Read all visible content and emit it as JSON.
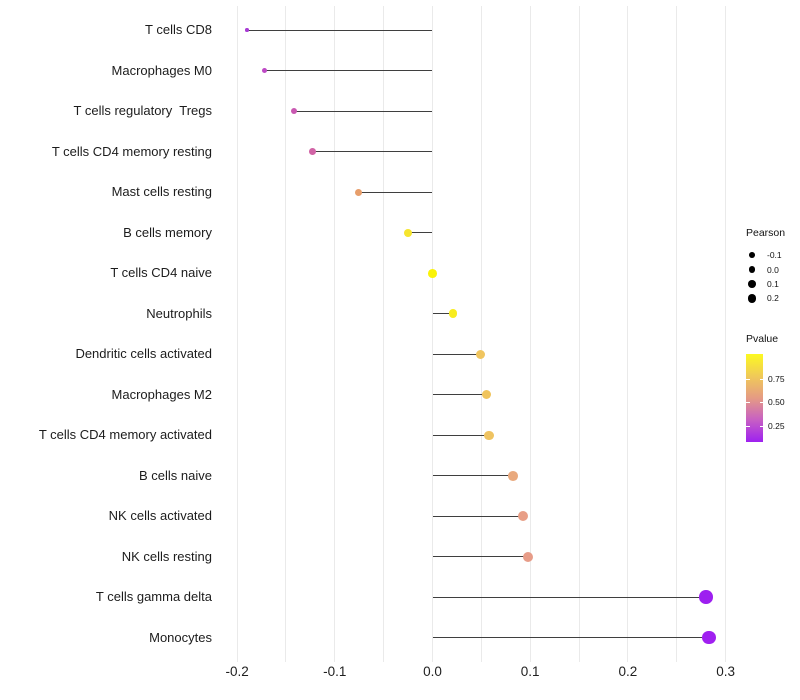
{
  "chart_data": {
    "type": "scatter",
    "subtype": "lollipop",
    "title": "",
    "xlabel": "",
    "ylabel": "",
    "xlim": [
      -0.225,
      0.33
    ],
    "x_tick_labels": [
      "-0.2",
      "-0.1",
      "0.0",
      "0.1",
      "0.2",
      "0.3"
    ],
    "x_tick_values": [
      -0.2,
      -0.1,
      0.0,
      0.1,
      0.2,
      0.3
    ],
    "gridline_values": [
      -0.2,
      -0.15,
      -0.1,
      -0.05,
      0.0,
      0.05,
      0.1,
      0.15,
      0.2,
      0.25,
      0.3
    ],
    "grid": "vertical only, light gray, every 0.05",
    "legend_position": "right",
    "points": [
      {
        "label": "T cells CD8",
        "pearson": -0.19,
        "color": "#A83BD4",
        "diameter": 3.6
      },
      {
        "label": "Macrophages M0",
        "pearson": -0.172,
        "color": "#BE49C5",
        "diameter": 5.2
      },
      {
        "label": "T cells regulatory  Tregs",
        "pearson": -0.142,
        "color": "#C958B1",
        "diameter": 6.4
      },
      {
        "label": "T cells CD4 memory resting",
        "pearson": -0.123,
        "color": "#D164A6",
        "diameter": 6.8
      },
      {
        "label": "Mast cells resting",
        "pearson": -0.076,
        "color": "#E79E6B",
        "diameter": 7.4
      },
      {
        "label": "B cells memory",
        "pearson": -0.025,
        "color": "#F6E52E",
        "diameter": 8.2
      },
      {
        "label": "T cells CD4 naive",
        "pearson": 0.0,
        "color": "#FAF307",
        "diameter": 8.8
      },
      {
        "label": "Neutrophils",
        "pearson": 0.021,
        "color": "#F8EC1E",
        "diameter": 8.8
      },
      {
        "label": "Dendritic cells activated",
        "pearson": 0.049,
        "color": "#F0C55F",
        "diameter": 9.2
      },
      {
        "label": "Macrophages M2",
        "pearson": 0.055,
        "color": "#F0C45C",
        "diameter": 9.4
      },
      {
        "label": "T cells CD4 memory activated",
        "pearson": 0.058,
        "color": "#EFC361",
        "diameter": 9.4
      },
      {
        "label": "B cells naive",
        "pearson": 0.082,
        "color": "#E9A97D",
        "diameter": 9.8
      },
      {
        "label": "NK cells activated",
        "pearson": 0.093,
        "color": "#E89E86",
        "diameter": 10.2
      },
      {
        "label": "NK cells resting",
        "pearson": 0.098,
        "color": "#E79C88",
        "diameter": 10.2
      },
      {
        "label": "T cells gamma delta",
        "pearson": 0.28,
        "color": "#9D1FF0",
        "diameter": 13.6
      },
      {
        "label": "Monocytes",
        "pearson": 0.283,
        "color": "#A020F0",
        "diameter": 13.6
      }
    ],
    "legends": {
      "size": {
        "title": "Pearson",
        "entries": [
          {
            "label": "-0.1",
            "diameter": 5.7
          },
          {
            "label": "0.0",
            "diameter": 6.7
          },
          {
            "label": "0.1",
            "diameter": 7.7
          },
          {
            "label": "0.2",
            "diameter": 8.7
          }
        ]
      },
      "color": {
        "title": "Pvalue",
        "gradient_high_color": "#FCF921",
        "gradient_low_color": "#9E21F0",
        "tick_labels": [
          "0.75",
          "0.50",
          "0.25"
        ],
        "tick_fractions_from_top": [
          0.284,
          0.545,
          0.818
        ]
      }
    },
    "style": {
      "stem_color": "#3f3f3f",
      "gridline_color": "#eaeaea",
      "axis_text_color": "#1f1f1f",
      "background": "#ffffff"
    }
  }
}
